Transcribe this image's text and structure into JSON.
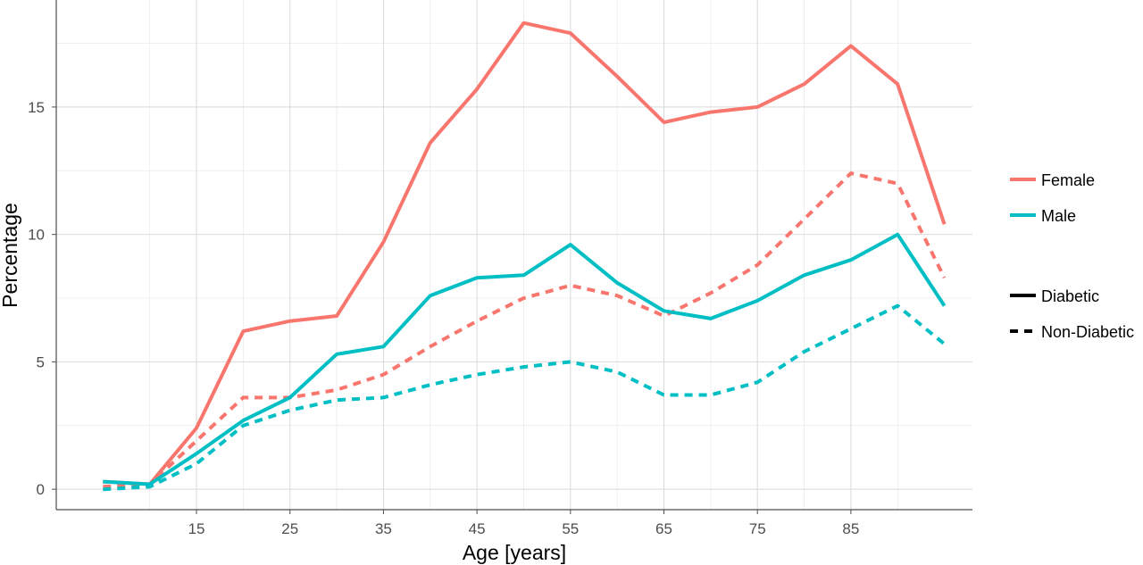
{
  "chart_data": {
    "type": "line",
    "title": "",
    "xlabel": "Age [years]",
    "ylabel": "Percentage",
    "xlim": [
      0,
      98
    ],
    "ylim": [
      -0.8,
      19.2
    ],
    "x_ticks": [
      15,
      25,
      35,
      45,
      55,
      65,
      75,
      85
    ],
    "y_ticks": [
      0,
      5,
      10,
      15
    ],
    "grid": true,
    "legend_position": "right",
    "legend": {
      "colour": [
        {
          "label": "Female",
          "color": "#F8766D"
        },
        {
          "label": "Male",
          "color": "#00BFC4"
        }
      ],
      "linetype": [
        {
          "label": "Diabetic",
          "style": "solid"
        },
        {
          "label": "Non-Diabetic",
          "style": "dashed"
        }
      ]
    },
    "x": [
      5,
      10,
      15,
      20,
      25,
      30,
      35,
      40,
      45,
      50,
      55,
      60,
      65,
      70,
      75,
      80,
      85,
      90,
      95
    ],
    "series": [
      {
        "sex": "Female",
        "status": "Diabetic",
        "color": "#F8766D",
        "dash": "solid",
        "values": [
          0.3,
          0.2,
          2.4,
          6.2,
          6.6,
          6.8,
          9.7,
          13.6,
          15.7,
          18.3,
          17.9,
          16.2,
          14.4,
          14.8,
          15.0,
          15.9,
          17.4,
          15.9,
          10.4
        ]
      },
      {
        "sex": "Female",
        "status": "Non-Diabetic",
        "color": "#F8766D",
        "dash": "dashed",
        "values": [
          0.1,
          0.2,
          1.9,
          3.6,
          3.6,
          3.9,
          4.5,
          5.6,
          6.6,
          7.5,
          8.0,
          7.6,
          6.8,
          7.7,
          8.8,
          10.6,
          12.4,
          12.0,
          8.3
        ]
      },
      {
        "sex": "Male",
        "status": "Diabetic",
        "color": "#00BFC4",
        "dash": "solid",
        "values": [
          0.3,
          0.2,
          1.4,
          2.7,
          3.6,
          5.3,
          5.6,
          7.6,
          8.3,
          8.4,
          9.6,
          8.1,
          7.0,
          6.7,
          7.4,
          8.4,
          9.0,
          10.0,
          7.2
        ]
      },
      {
        "sex": "Male",
        "status": "Non-Diabetic",
        "color": "#00BFC4",
        "dash": "dashed",
        "values": [
          0.0,
          0.1,
          1.0,
          2.5,
          3.1,
          3.5,
          3.6,
          4.1,
          4.5,
          4.8,
          5.0,
          4.6,
          3.7,
          3.7,
          4.2,
          5.4,
          6.3,
          7.2,
          5.7
        ]
      }
    ]
  }
}
